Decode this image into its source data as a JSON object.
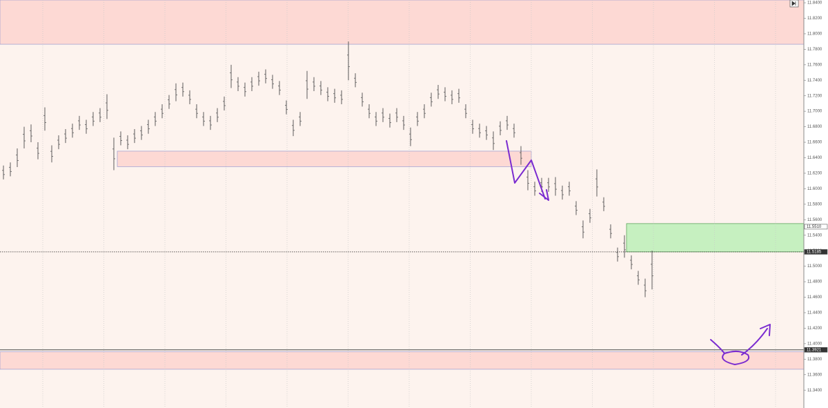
{
  "chart_data": {
    "type": "ohlc",
    "color": "#5a5a5a",
    "background": "#fdf3ee",
    "high": [
      11.63,
      11.634,
      11.652,
      11.68,
      11.683,
      11.66,
      11.705,
      11.656,
      11.669,
      11.677,
      11.684,
      11.694,
      11.689,
      11.699,
      11.704,
      11.722,
      11.666,
      11.674,
      11.669,
      11.677,
      11.681,
      11.689,
      11.699,
      11.709,
      11.721,
      11.736,
      11.737,
      11.727,
      11.709,
      11.699,
      11.694,
      11.704,
      11.719,
      11.76,
      11.744,
      11.737,
      11.744,
      11.751,
      11.754,
      11.747,
      11.739,
      11.714,
      11.689,
      11.699,
      11.752,
      11.744,
      11.739,
      11.731,
      11.729,
      11.727,
      11.79,
      11.749,
      11.724,
      11.709,
      11.699,
      11.704,
      11.697,
      11.704,
      11.694,
      11.679,
      11.699,
      11.709,
      11.724,
      11.734,
      11.731,
      11.727,
      11.729,
      11.709,
      11.689,
      11.684,
      11.681,
      11.674,
      11.687,
      11.694,
      11.684,
      11.655,
      11.624,
      11.609,
      11.614,
      11.614,
      11.615,
      11.604,
      11.609,
      11.584,
      11.559,
      11.574,
      11.625,
      11.589,
      11.554,
      11.524,
      11.54,
      11.514,
      11.494,
      11.484,
      11.52
    ],
    "low": [
      11.612,
      11.616,
      11.628,
      11.652,
      11.66,
      11.638,
      11.675,
      11.634,
      11.651,
      11.659,
      11.666,
      11.676,
      11.671,
      11.681,
      11.686,
      11.69,
      11.624,
      11.656,
      11.651,
      11.659,
      11.663,
      11.671,
      11.681,
      11.691,
      11.703,
      11.713,
      11.719,
      11.709,
      11.691,
      11.681,
      11.676,
      11.686,
      11.701,
      11.73,
      11.726,
      11.719,
      11.726,
      11.733,
      11.736,
      11.729,
      11.721,
      11.696,
      11.668,
      11.681,
      11.716,
      11.726,
      11.721,
      11.713,
      11.711,
      11.709,
      11.74,
      11.731,
      11.706,
      11.691,
      11.681,
      11.686,
      11.679,
      11.686,
      11.676,
      11.655,
      11.681,
      11.691,
      11.706,
      11.716,
      11.713,
      11.709,
      11.711,
      11.691,
      11.671,
      11.666,
      11.663,
      11.65,
      11.669,
      11.676,
      11.666,
      11.631,
      11.598,
      11.591,
      11.596,
      11.596,
      11.591,
      11.586,
      11.591,
      11.566,
      11.536,
      11.556,
      11.59,
      11.571,
      11.536,
      11.506,
      11.511,
      11.496,
      11.476,
      11.46,
      11.47
    ],
    "zones": [
      {
        "top": 11.8436,
        "bottom": 11.7865,
        "color": "#fdd9d4"
      },
      {
        "top": 11.6485,
        "bottom": 11.6285,
        "color": "#fdd9d4"
      },
      {
        "top": 11.3895,
        "bottom": 11.367,
        "color": "#fdd9d4"
      },
      {
        "top": 11.555,
        "bottom": 11.5185,
        "color": "#c6f0c0"
      }
    ],
    "price_markers": [
      {
        "value": 11.551,
        "label": "11.5510"
      },
      {
        "value": 11.5185,
        "label": "11.5185"
      },
      {
        "value": 11.3921,
        "label": "11.3921"
      }
    ],
    "ylim": [
      11.317,
      11.8436
    ],
    "yticks": [
      {
        "value": 11.34,
        "label": "11.3400"
      },
      {
        "value": 11.36,
        "label": "11.3600"
      },
      {
        "value": 11.38,
        "label": "11.3800"
      },
      {
        "value": 11.4,
        "label": "11.4000"
      },
      {
        "value": 11.42,
        "label": "11.4200"
      },
      {
        "value": 11.44,
        "label": "11.4400"
      },
      {
        "value": 11.46,
        "label": "11.4600"
      },
      {
        "value": 11.48,
        "label": "11.4800"
      },
      {
        "value": 11.5,
        "label": "11.5000"
      },
      {
        "value": 11.52,
        "label": "11.5200"
      },
      {
        "value": 11.54,
        "label": "11.5400"
      },
      {
        "value": 11.56,
        "label": "11.5600"
      },
      {
        "value": 11.58,
        "label": "11.5800"
      },
      {
        "value": 11.6,
        "label": "11.6000"
      },
      {
        "value": 11.62,
        "label": "11.6200"
      },
      {
        "value": 11.64,
        "label": "11.6400"
      },
      {
        "value": 11.66,
        "label": "11.6600"
      },
      {
        "value": 11.68,
        "label": "11.6800"
      },
      {
        "value": 11.7,
        "label": "11.7000"
      },
      {
        "value": 11.72,
        "label": "11.7200"
      },
      {
        "value": 11.74,
        "label": "11.7400"
      },
      {
        "value": 11.76,
        "label": "11.7600"
      },
      {
        "value": 11.78,
        "label": "11.7800"
      },
      {
        "value": 11.8,
        "label": "11.8000"
      },
      {
        "value": 11.82,
        "label": "11.8200"
      },
      {
        "value": 11.84,
        "label": "11.8400"
      }
    ]
  }
}
